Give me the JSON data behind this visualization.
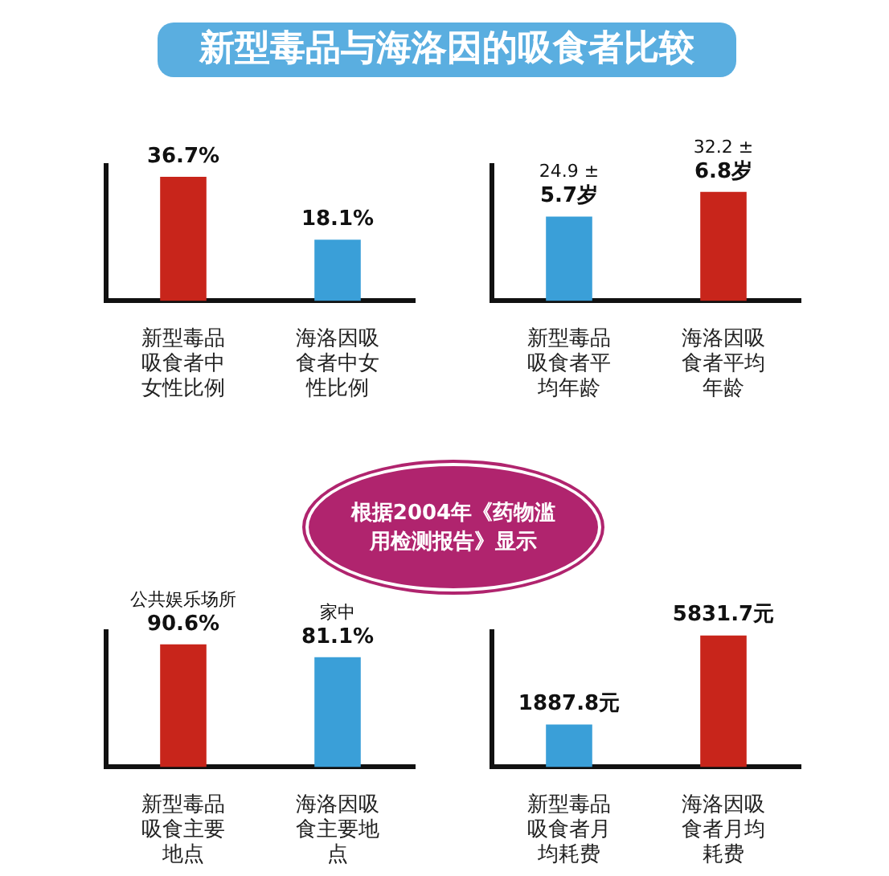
{
  "chart_data": [
    {
      "type": "other",
      "title": "新型毒品与海洛因的吸食者比较",
      "annotations": [
        "根据2004年《药物滥用检测报告》显示"
      ]
    },
    {
      "type": "bar",
      "categories": [
        "新型毒品吸食者中女性比例",
        "海洛因吸食者中女性比例"
      ],
      "values": [
        36.7,
        18.1
      ],
      "colors": [
        "#c8251b",
        "#3a9fd8"
      ],
      "value_labels": [
        "36.7%",
        "18.1%"
      ],
      "tick_labels": false
    },
    {
      "type": "bar",
      "categories": [
        "新型毒品吸食者平均年龄",
        "海洛因吸食者平均年龄"
      ],
      "values": [
        24.9,
        32.2
      ],
      "colors": [
        "#3a9fd8",
        "#c8251b"
      ],
      "value_labels": [
        "24.9 ± 5.7岁",
        "32.2 ± 6.8岁"
      ],
      "tick_labels": false
    },
    {
      "type": "bar",
      "categories": [
        "新型毒品吸食主要地点",
        "海洛因吸食主要地点"
      ],
      "values": [
        90.6,
        81.1
      ],
      "colors": [
        "#c8251b",
        "#3a9fd8"
      ],
      "value_labels": [
        "公共娱乐场所 90.6%",
        "家中 81.1%"
      ],
      "tick_labels": false
    },
    {
      "type": "bar",
      "categories": [
        "新型毒品吸食者月均耗费",
        "海洛因吸食者月均耗费"
      ],
      "values": [
        1887.8,
        5831.7
      ],
      "colors": [
        "#3a9fd8",
        "#c8251b"
      ],
      "value_labels": [
        "1887.8元",
        "5831.7元"
      ],
      "tick_labels": false
    }
  ]
}
